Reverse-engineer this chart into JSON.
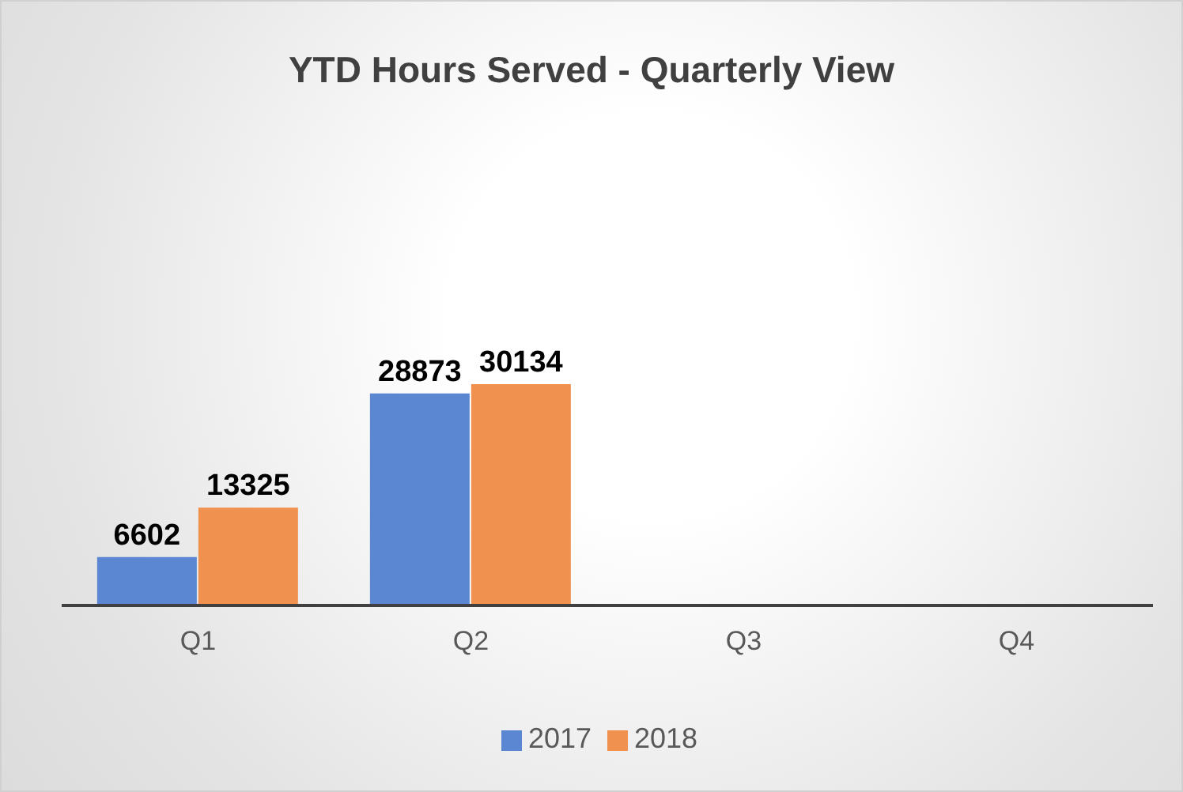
{
  "chart_data": {
    "type": "bar",
    "title": "YTD Hours Served - Quarterly View",
    "categories": [
      "Q1",
      "Q2",
      "Q3",
      "Q4"
    ],
    "series": [
      {
        "name": "2017",
        "color": "#5b87d2",
        "values": [
          6602,
          28873,
          null,
          null
        ]
      },
      {
        "name": "2018",
        "color": "#f0914f",
        "values": [
          13325,
          30134,
          null,
          null
        ]
      }
    ],
    "data_labels": true,
    "grid": false,
    "legend": "bottom"
  }
}
